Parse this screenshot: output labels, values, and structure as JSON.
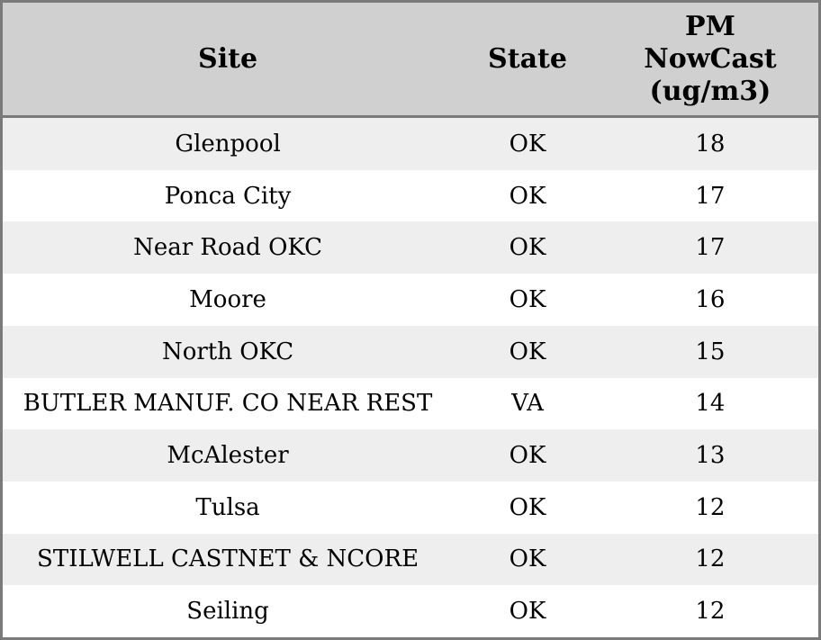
{
  "table": {
    "headers": {
      "site": "Site",
      "state": "State",
      "pm": "PM NowCast (ug/m3)"
    },
    "rows": [
      {
        "site": "Glenpool",
        "state": "OK",
        "pm": "18"
      },
      {
        "site": "Ponca City",
        "state": "OK",
        "pm": "17"
      },
      {
        "site": "Near Road OKC",
        "state": "OK",
        "pm": "17"
      },
      {
        "site": "Moore",
        "state": "OK",
        "pm": "16"
      },
      {
        "site": "North OKC",
        "state": "OK",
        "pm": "15"
      },
      {
        "site": "BUTLER MANUF. CO NEAR REST",
        "state": "VA",
        "pm": "14"
      },
      {
        "site": "McAlester",
        "state": "OK",
        "pm": "13"
      },
      {
        "site": "Tulsa",
        "state": "OK",
        "pm": "12"
      },
      {
        "site": "STILWELL CASTNET & NCORE",
        "state": "OK",
        "pm": "12"
      },
      {
        "site": "Seiling",
        "state": "OK",
        "pm": "12"
      }
    ]
  },
  "colors": {
    "header_bg": "#d0d0d0",
    "border": "#7a7a7a",
    "stripe_row_bg": "#eeeeee",
    "plain_row_bg": "#ffffff",
    "text": "#000000"
  },
  "chart_data": {
    "type": "table",
    "title": "",
    "columns": [
      "Site",
      "State",
      "PM NowCast (ug/m3)"
    ],
    "rows": [
      [
        "Glenpool",
        "OK",
        18
      ],
      [
        "Ponca City",
        "OK",
        17
      ],
      [
        "Near Road OKC",
        "OK",
        17
      ],
      [
        "Moore",
        "OK",
        16
      ],
      [
        "North OKC",
        "OK",
        15
      ],
      [
        "BUTLER MANUF. CO NEAR REST",
        "VA",
        14
      ],
      [
        "McAlester",
        "OK",
        13
      ],
      [
        "Tulsa",
        "OK",
        12
      ],
      [
        "STILWELL CASTNET & NCORE",
        "OK",
        12
      ],
      [
        "Seiling",
        "OK",
        12
      ]
    ]
  }
}
